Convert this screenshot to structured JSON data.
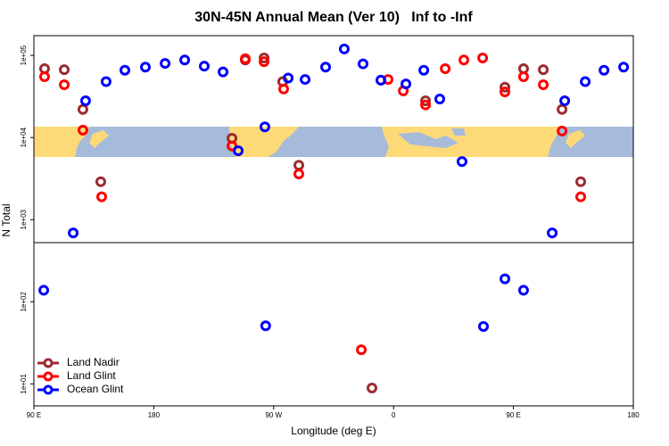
{
  "chart_data": {
    "type": "scatter",
    "title": "30N-45N Annual Mean (Ver 10)   Inf to -Inf",
    "xlabel": "Longitude (deg E)",
    "ylabel": "N Total",
    "log_y": true,
    "legend": "lower left",
    "xlim": [
      90,
      540
    ],
    "xticks": [
      {
        "value": 90,
        "label": "90 E"
      },
      {
        "value": 180,
        "label": "180"
      },
      {
        "value": 270,
        "label": "90 W"
      },
      {
        "value": 360,
        "label": "0"
      },
      {
        "value": 450,
        "label": "90 E"
      },
      {
        "value": 540,
        "label": "180"
      }
    ],
    "ylim": [
      5.4,
      174000
    ],
    "yticks": [
      {
        "value": 10,
        "label": "1e+01"
      },
      {
        "value": 100,
        "label": "1e+02"
      },
      {
        "value": 1000,
        "label": "1e+03"
      },
      {
        "value": 10000,
        "label": "1e+04"
      },
      {
        "value": 100000,
        "label": "1e+05"
      }
    ],
    "series": [
      {
        "name": "Land Nadir",
        "color": "#9b2d30",
        "x": [
          98,
          112.8,
          126.8,
          140.2,
          238.7,
          248.7,
          262.8,
          276.8,
          288.9,
          343.8,
          384,
          443.6,
          457.6,
          472.4,
          486.5,
          500.5
        ],
        "values": [
          69000,
          67000,
          22000,
          2900,
          9800,
          88000,
          93000,
          48000,
          4600,
          8.9,
          28000,
          41000,
          69000,
          67000,
          22000,
          2900
        ]
      },
      {
        "name": "Land Glint",
        "color": "#ff0000",
        "x": [
          98,
          112.8,
          126.8,
          140.9,
          238.7,
          248.7,
          262.8,
          277.5,
          288.9,
          335.8,
          355.9,
          367.3,
          384,
          398.8,
          412.8,
          426.9,
          443.6,
          457.6,
          472.4,
          486.5,
          500.5
        ],
        "values": [
          55000,
          44000,
          12300,
          1900,
          7900,
          91000,
          84000,
          39000,
          3600,
          26,
          51000,
          37000,
          25000,
          69000,
          88000,
          93000,
          36000,
          55000,
          44000,
          12000,
          1900
        ]
      },
      {
        "name": "Ocean Glint",
        "color": "#0000ff",
        "x": [
          97.4,
          119.5,
          128.8,
          144.2,
          158.3,
          173.7,
          188.5,
          203.2,
          217.9,
          232,
          243.4,
          263.4,
          264,
          280.9,
          293.6,
          309,
          323,
          337.1,
          350.5,
          369.3,
          382.7,
          394.7,
          411.4,
          427.5,
          443.6,
          457.6,
          479.1,
          488.5,
          503.9,
          518,
          532.7
        ],
        "values": [
          138,
          690,
          28000,
          48000,
          66000,
          72000,
          80000,
          88000,
          74000,
          63000,
          6900,
          13500,
          51,
          53000,
          51000,
          72000,
          120000,
          79000,
          50000,
          45000,
          66000,
          29500,
          5100,
          50,
          190,
          138,
          690,
          28000,
          48000,
          66000,
          72000
        ]
      }
    ]
  }
}
